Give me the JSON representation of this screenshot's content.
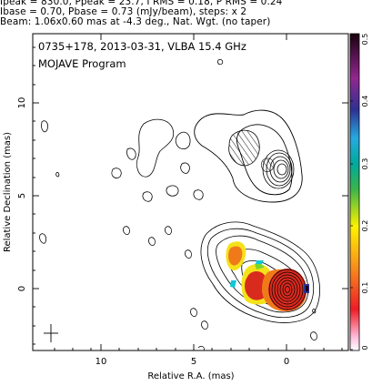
{
  "header": {
    "line1": "Ipeak = 830.0, Ppeak = 23.7, I RMS = 0.18, P RMS = 0.24",
    "line2": "Ibase = 0.70, Pbase = 0.73 (mJy/beam), steps: x 2",
    "line3": "Beam: 1.06x0.60 mas at -4.3 deg., Nat. Wgt. (no taper)"
  },
  "plot": {
    "title_line1": "0735+178, 2013-03-31, VLBA 15.4 GHz",
    "title_line2": "MOJAVE Program",
    "xlabel": "Relative R.A. (mas)",
    "ylabel": "Relative Declination (mas)",
    "x_ticks": [
      "10",
      "5",
      "0"
    ],
    "y_ticks": [
      "10",
      "5",
      "0"
    ]
  },
  "colorbar": {
    "ticks": [
      "0.5",
      "0.4",
      "0.3",
      "0.2",
      "0.1",
      "0"
    ]
  },
  "chart_data": {
    "type": "heatmap",
    "title": "0735+178, 2013-03-31, VLBA 15.4 GHz",
    "subtitle": "MOJAVE Program",
    "xlabel": "Relative R.A. (mas)",
    "ylabel": "Relative Declination (mas)",
    "xlim": [
      13.5,
      -3.5
    ],
    "ylim": [
      -3.5,
      13.5
    ],
    "x_ticks": [
      10,
      5,
      0
    ],
    "y_ticks": [
      10,
      5,
      0
    ],
    "colorbar_range": [
      0,
      0.5
    ],
    "colorbar_ticks": [
      0,
      0.1,
      0.2,
      0.3,
      0.4,
      0.5
    ],
    "colors": {
      "contour": "#000000",
      "hatch": "#000000",
      "core_fill": "#d92a1e",
      "ring_fill": "#f07a1a",
      "yellow_fill": "#f4e21a",
      "green_fill": "#7ad62a",
      "cyan_fill": "#10c8d8",
      "blue_fill": "#1e4fd6"
    }
  }
}
